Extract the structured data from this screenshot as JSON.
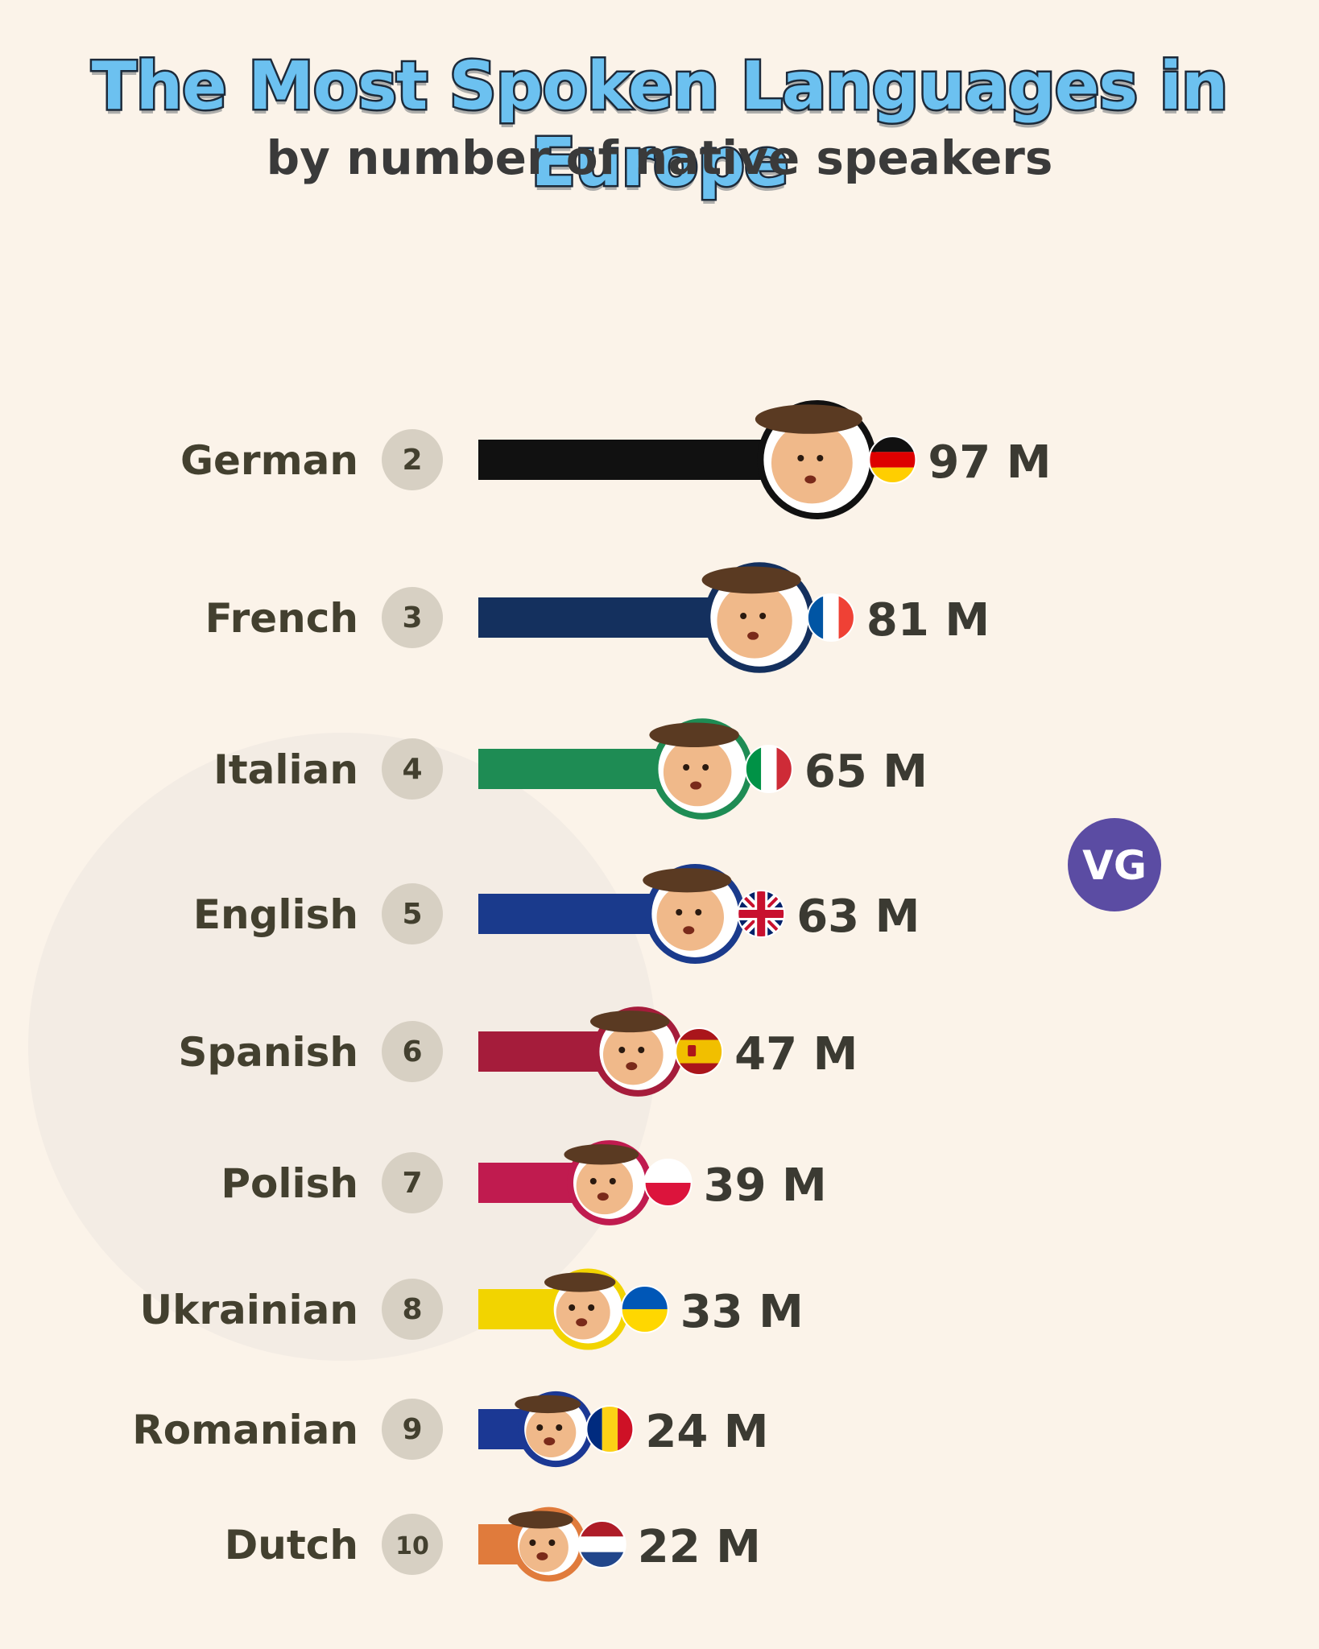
{
  "header": {
    "title": "The Most Spoken Languages in Europe",
    "subtitle": "by number of native speakers"
  },
  "badge": {
    "text": "VG",
    "color": "#5b4ca3"
  },
  "chart_data": {
    "type": "bar",
    "orientation": "horizontal",
    "title": "The Most Spoken Languages in Europe",
    "subtitle": "by number of native speakers",
    "categories": [
      "German",
      "French",
      "Italian",
      "English",
      "Spanish",
      "Polish",
      "Ukrainian",
      "Romanian",
      "Dutch"
    ],
    "ranks": [
      "2",
      "3",
      "4",
      "5",
      "6",
      "7",
      "8",
      "9",
      "10"
    ],
    "values": [
      97,
      81,
      65,
      63,
      47,
      39,
      33,
      24,
      22
    ],
    "value_labels": [
      "97 M",
      "81 M",
      "65 M",
      "63 M",
      "47 M",
      "39 M",
      "33 M",
      "24 M",
      "22 M"
    ],
    "unit": "M",
    "colors": [
      "#111111",
      "#14305e",
      "#1e8c54",
      "#1a3a8c",
      "#a51c3b",
      "#c01b4f",
      "#f2d400",
      "#1b3894",
      "#e07b3c"
    ],
    "flags": [
      "germany-flag",
      "france-flag",
      "italy-flag",
      "uk-flag",
      "spain-flag",
      "poland-flag",
      "ukraine-flag",
      "romania-flag",
      "netherlands-flag"
    ],
    "grid": false,
    "legend": "none"
  }
}
